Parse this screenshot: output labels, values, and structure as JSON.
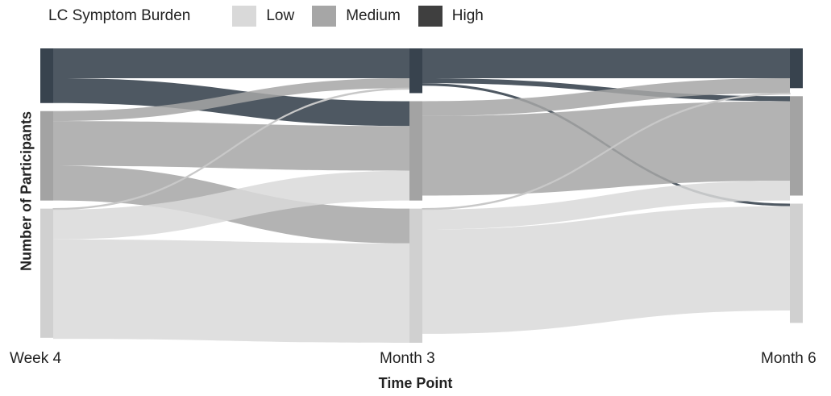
{
  "legend": {
    "title": "LC Symptom Burden",
    "items": [
      {
        "label": "Low",
        "color": "#d9d9d9"
      },
      {
        "label": "Medium",
        "color": "#a6a6a6"
      },
      {
        "label": "High",
        "color": "#3f3f3f"
      }
    ]
  },
  "chart_data": {
    "type": "sankey",
    "xlabel": "Time Point",
    "ylabel": "Number of Participants",
    "timepoints": [
      "Week 4",
      "Month 3",
      "Month 6"
    ],
    "categories": [
      "High",
      "Medium",
      "Low"
    ],
    "colors": {
      "High": "#3f4a55",
      "Medium": "#a6a6a6",
      "Low": "#d9d9d9",
      "node_low": "#d0d0d0",
      "node_medium": "#a3a3a3",
      "node_high": "#38434e"
    },
    "nodes": [
      {
        "time": "Week 4",
        "category": "High",
        "value": 11
      },
      {
        "time": "Week 4",
        "category": "Medium",
        "value": 18
      },
      {
        "time": "Week 4",
        "category": "Low",
        "value": 26
      },
      {
        "time": "Month 3",
        "category": "High",
        "value": 9
      },
      {
        "time": "Month 3",
        "category": "Medium",
        "value": 20
      },
      {
        "time": "Month 3",
        "category": "Low",
        "value": 27
      },
      {
        "time": "Month 6",
        "category": "High",
        "value": 8
      },
      {
        "time": "Month 6",
        "category": "Medium",
        "value": 20
      },
      {
        "time": "Month 6",
        "category": "Low",
        "value": 24
      }
    ],
    "flows": [
      {
        "from": "Week 4",
        "to": "Month 3",
        "source": "High",
        "target": "High",
        "value": 6
      },
      {
        "from": "Week 4",
        "to": "Month 3",
        "source": "High",
        "target": "Medium",
        "value": 5
      },
      {
        "from": "Week 4",
        "to": "Month 3",
        "source": "Medium",
        "target": "High",
        "value": 2
      },
      {
        "from": "Week 4",
        "to": "Month 3",
        "source": "Medium",
        "target": "Medium",
        "value": 9
      },
      {
        "from": "Week 4",
        "to": "Month 3",
        "source": "Medium",
        "target": "Low",
        "value": 7
      },
      {
        "from": "Week 4",
        "to": "Month 3",
        "source": "Low",
        "target": "High",
        "value": 0.2
      },
      {
        "from": "Week 4",
        "to": "Month 3",
        "source": "Low",
        "target": "Medium",
        "value": 6
      },
      {
        "from": "Week 4",
        "to": "Month 3",
        "source": "Low",
        "target": "Low",
        "value": 20
      },
      {
        "from": "Month 3",
        "to": "Month 6",
        "source": "High",
        "target": "High",
        "value": 6
      },
      {
        "from": "Month 3",
        "to": "Month 6",
        "source": "High",
        "target": "Medium",
        "value": 1
      },
      {
        "from": "Month 3",
        "to": "Month 6",
        "source": "High",
        "target": "Low",
        "value": 0.5
      },
      {
        "from": "Month 3",
        "to": "Month 6",
        "source": "Medium",
        "target": "High",
        "value": 3
      },
      {
        "from": "Month 3",
        "to": "Month 6",
        "source": "Medium",
        "target": "Medium",
        "value": 16
      },
      {
        "from": "Month 3",
        "to": "Month 6",
        "source": "Low",
        "target": "High",
        "value": 0.2
      },
      {
        "from": "Month 3",
        "to": "Month 6",
        "source": "Low",
        "target": "Medium",
        "value": 4
      },
      {
        "from": "Month 3",
        "to": "Month 6",
        "source": "Low",
        "target": "Low",
        "value": 21
      }
    ]
  }
}
